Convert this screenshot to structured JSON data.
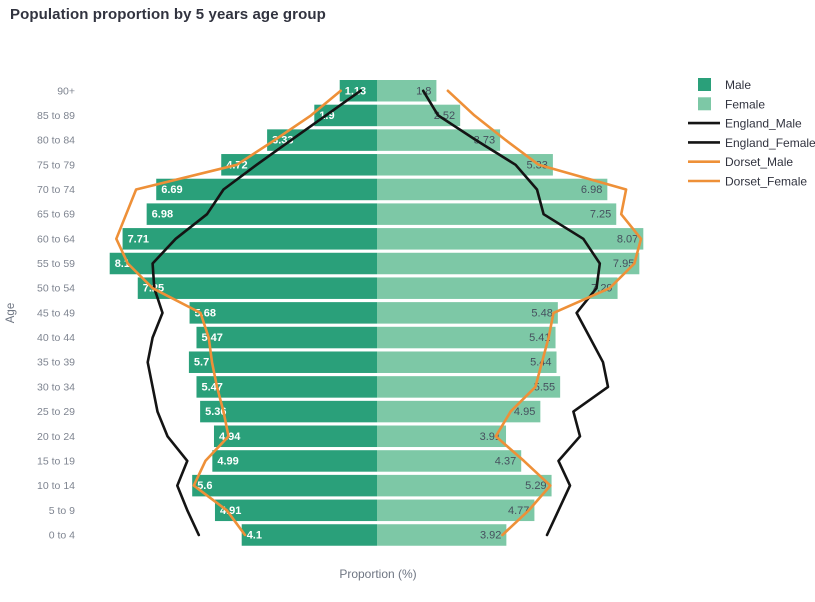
{
  "title": "Population proportion by 5 years age group",
  "colors": {
    "male_bar": "#2aa07a",
    "female_bar": "#7dc8a6",
    "england_line": "#141414",
    "dorset_line": "#ee9038",
    "title_text": "#31333f",
    "tick_text": "#7e8490",
    "axis_title_text": "#6f7683",
    "male_value_label": "#ffffff",
    "female_value_label": "#46505e",
    "legend_text": "#31333f"
  },
  "chart_data": {
    "type": "bar",
    "subtype": "population-pyramid",
    "title": "Population proportion by 5 years age group",
    "xlabel": "Proportion (%)",
    "ylabel": "Age",
    "x_axis_max": 8.5,
    "grid": false,
    "legend_position": "right",
    "categories": [
      "90+",
      "85 to 89",
      "80 to 84",
      "75 to 79",
      "70 to 74",
      "65 to 69",
      "60 to 64",
      "55 to 59",
      "50 to 54",
      "45 to 49",
      "40 to 44",
      "35 to 39",
      "30 to 34",
      "25 to 29",
      "20 to 24",
      "15 to 19",
      "10 to 14",
      "5 to 9",
      "0 to 4"
    ],
    "series": [
      {
        "name": "Male",
        "kind": "bar",
        "side": "male",
        "color": "#2aa07a",
        "label_color": "#ffffff",
        "values": [
          1.13,
          1.9,
          3.33,
          4.72,
          6.69,
          6.98,
          7.71,
          8.1,
          7.25,
          5.68,
          5.47,
          5.7,
          5.47,
          5.36,
          4.94,
          4.99,
          5.6,
          4.91,
          4.1
        ]
      },
      {
        "name": "Female",
        "kind": "bar",
        "side": "female",
        "color": "#7dc8a6",
        "label_color": "#46505e",
        "values": [
          1.8,
          2.52,
          3.73,
          5.33,
          6.98,
          7.25,
          8.07,
          7.95,
          7.29,
          5.48,
          5.41,
          5.44,
          5.55,
          4.95,
          3.91,
          4.37,
          5.29,
          4.77,
          3.92
        ]
      },
      {
        "name": "England_Male",
        "kind": "line",
        "side": "male",
        "color": "#141414",
        "values": [
          0.5,
          1.55,
          2.6,
          3.65,
          4.65,
          5.15,
          6.1,
          6.8,
          6.75,
          6.5,
          6.8,
          6.95,
          6.8,
          6.65,
          6.35,
          5.75,
          6.05,
          5.75,
          5.4
        ]
      },
      {
        "name": "England_Female",
        "kind": "line",
        "side": "female",
        "color": "#141414",
        "values": [
          1.4,
          1.85,
          3.0,
          4.2,
          4.85,
          5.05,
          6.25,
          6.75,
          6.65,
          6.05,
          6.45,
          6.85,
          7.0,
          5.95,
          6.15,
          5.5,
          5.85,
          5.5,
          5.15
        ]
      },
      {
        "name": "Dorset_Male",
        "kind": "line",
        "side": "male",
        "color": "#ee9038",
        "values": [
          1.1,
          2.0,
          3.1,
          4.25,
          7.3,
          7.6,
          7.9,
          7.55,
          6.8,
          5.35,
          5.1,
          5.0,
          4.85,
          4.65,
          4.5,
          5.2,
          5.55,
          4.55,
          4.0
        ]
      },
      {
        "name": "Dorset_Female",
        "kind": "line",
        "side": "female",
        "color": "#ee9038",
        "values": [
          2.15,
          2.95,
          3.9,
          4.9,
          7.55,
          7.4,
          8.0,
          7.8,
          7.05,
          5.35,
          5.2,
          5.0,
          4.8,
          4.05,
          3.6,
          4.45,
          5.25,
          4.6,
          3.8
        ]
      }
    ],
    "legend": [
      {
        "label": "Male",
        "swatch": "square",
        "color": "#2aa07a"
      },
      {
        "label": "Female",
        "swatch": "square",
        "color": "#7dc8a6"
      },
      {
        "label": "England_Male",
        "swatch": "line",
        "color": "#141414"
      },
      {
        "label": "England_Female",
        "swatch": "line",
        "color": "#141414"
      },
      {
        "label": "Dorset_Male",
        "swatch": "line",
        "color": "#ee9038"
      },
      {
        "label": "Dorset_Female",
        "swatch": "line",
        "color": "#ee9038"
      }
    ]
  }
}
